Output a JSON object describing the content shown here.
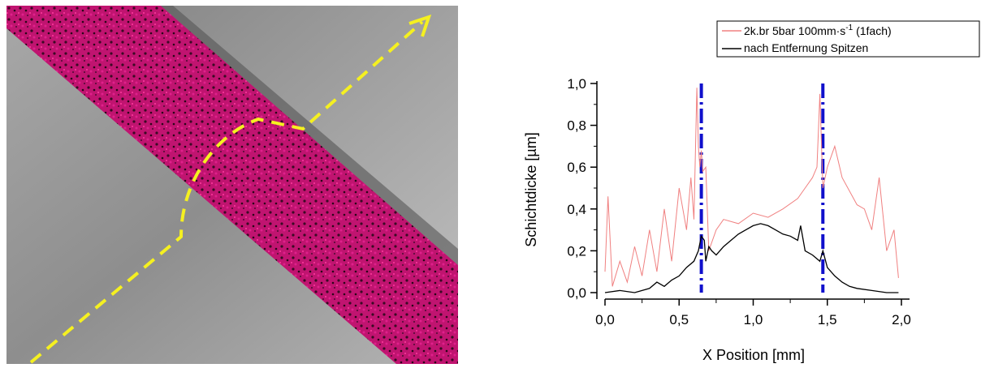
{
  "colors": {
    "series_raw": "#f08080",
    "series_clean": "#000000",
    "marker_lines": "#1010cc",
    "path_arrow": "#f5f020",
    "coating": "#c8157a",
    "metal": "#9a9a9a"
  },
  "photo": {
    "icon": "coated-sample-photo"
  },
  "chart_data": {
    "type": "line",
    "xlabel": "X Position [mm]",
    "ylabel": "Schichtdicke [µm]",
    "xlim": [
      0.0,
      2.0
    ],
    "ylim": [
      0.0,
      1.0
    ],
    "xticks": [
      "0,0",
      "0,5",
      "1,0",
      "1,5",
      "2,0"
    ],
    "yticks": [
      "0,0",
      "0,2",
      "0,4",
      "0,6",
      "0,8",
      "1,0"
    ],
    "legend_position": "top-right",
    "legend": {
      "raw_prefix": "2k.br 5bar 100mm·s",
      "raw_sup": "-1",
      "raw_suffix": " (1fach)",
      "clean": "nach Entfernung Spitzen"
    },
    "vertical_markers": [
      0.65,
      1.47
    ],
    "series": [
      {
        "name": "2k.br 5bar 100mm·s-1 (1fach)",
        "color": "#f08080",
        "x": [
          0.0,
          0.02,
          0.05,
          0.1,
          0.15,
          0.2,
          0.25,
          0.3,
          0.35,
          0.4,
          0.45,
          0.5,
          0.55,
          0.58,
          0.6,
          0.62,
          0.63,
          0.64,
          0.65,
          0.66,
          0.68,
          0.7,
          0.75,
          0.8,
          0.9,
          1.0,
          1.1,
          1.2,
          1.3,
          1.35,
          1.4,
          1.43,
          1.45,
          1.47,
          1.5,
          1.55,
          1.6,
          1.7,
          1.75,
          1.8,
          1.85,
          1.9,
          1.95,
          1.98
        ],
        "y": [
          0.1,
          0.46,
          0.03,
          0.15,
          0.05,
          0.22,
          0.08,
          0.3,
          0.1,
          0.4,
          0.15,
          0.5,
          0.3,
          0.55,
          0.35,
          0.98,
          0.7,
          0.6,
          0.68,
          0.58,
          0.6,
          0.2,
          0.3,
          0.35,
          0.33,
          0.38,
          0.36,
          0.4,
          0.45,
          0.5,
          0.55,
          0.6,
          0.95,
          0.5,
          0.6,
          0.7,
          0.55,
          0.42,
          0.4,
          0.3,
          0.55,
          0.2,
          0.3,
          0.07
        ]
      },
      {
        "name": "nach Entfernung Spitzen",
        "color": "#000000",
        "x": [
          0.0,
          0.1,
          0.2,
          0.3,
          0.35,
          0.4,
          0.45,
          0.5,
          0.55,
          0.6,
          0.63,
          0.65,
          0.67,
          0.68,
          0.7,
          0.72,
          0.75,
          0.8,
          0.85,
          0.9,
          0.95,
          1.0,
          1.05,
          1.1,
          1.15,
          1.2,
          1.25,
          1.3,
          1.32,
          1.35,
          1.4,
          1.45,
          1.47,
          1.5,
          1.55,
          1.6,
          1.65,
          1.7,
          1.8,
          1.9,
          1.98
        ],
        "y": [
          0.0,
          0.01,
          0.0,
          0.02,
          0.05,
          0.03,
          0.06,
          0.08,
          0.12,
          0.15,
          0.2,
          0.27,
          0.25,
          0.15,
          0.22,
          0.2,
          0.18,
          0.22,
          0.25,
          0.28,
          0.3,
          0.32,
          0.33,
          0.32,
          0.3,
          0.28,
          0.27,
          0.25,
          0.32,
          0.2,
          0.18,
          0.15,
          0.2,
          0.12,
          0.08,
          0.05,
          0.03,
          0.02,
          0.01,
          0.0,
          0.0
        ]
      }
    ]
  }
}
